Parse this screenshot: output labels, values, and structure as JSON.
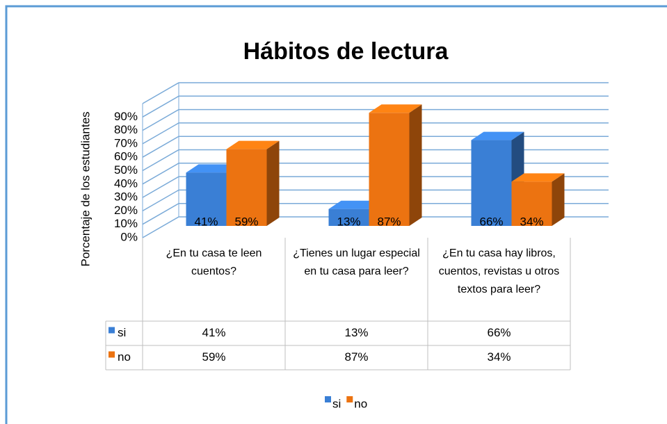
{
  "chart_data": {
    "type": "bar3d",
    "title": "Hábitos de lectura",
    "y_axis_label": "Porcentaje de los estudiantes",
    "categories": [
      "¿En tu casa te leen cuentos?",
      "¿Tienes un lugar especial en tu casa para leer?",
      "¿En tu casa hay libros, cuentos, revistas u otros textos para leer?"
    ],
    "series": [
      {
        "name": "si",
        "color": "#3a7fd5",
        "values": [
          41,
          13,
          66
        ],
        "value_labels": [
          "41%",
          "13%",
          "66%"
        ]
      },
      {
        "name": "no",
        "color": "#ec7311",
        "values": [
          59,
          87,
          34
        ],
        "value_labels": [
          "59%",
          "87%",
          "34%"
        ]
      }
    ],
    "ylim": [
      0,
      100
    ],
    "yticks": [
      {
        "value": 0,
        "label": "0%"
      },
      {
        "value": 10,
        "label": "10%"
      },
      {
        "value": 20,
        "label": "20%"
      },
      {
        "value": 30,
        "label": "30%"
      },
      {
        "value": 40,
        "label": "40%"
      },
      {
        "value": 50,
        "label": "50%"
      },
      {
        "value": 60,
        "label": "60%"
      },
      {
        "value": 70,
        "label": "70%"
      },
      {
        "value": 80,
        "label": "80%"
      },
      {
        "value": 90,
        "label": "90%"
      }
    ],
    "grid": true,
    "data_table": true,
    "legend": "bottom"
  }
}
